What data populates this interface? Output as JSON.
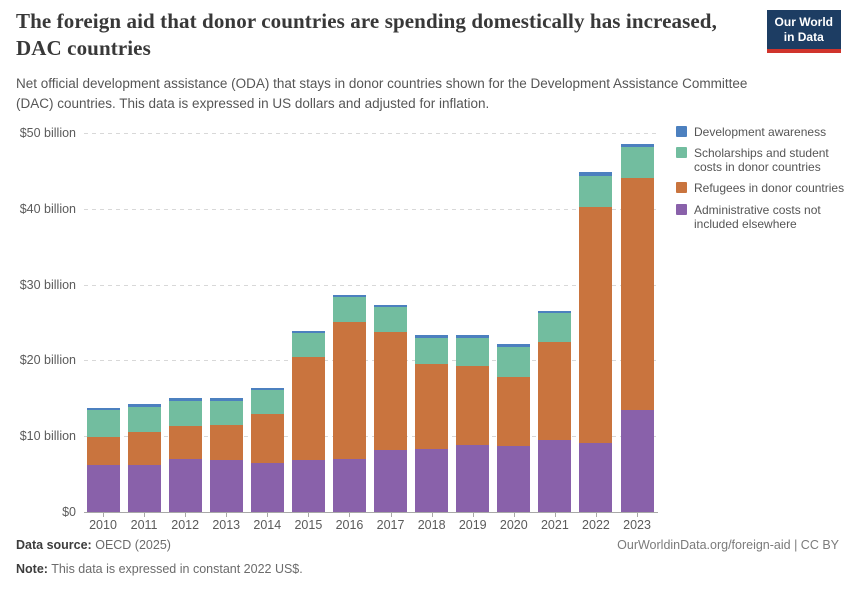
{
  "header": {
    "title": "The foreign aid that donor countries are spending domestically has increased, DAC countries",
    "subtitle": "Net official development assistance (ODA) that stays in donor countries shown for the Development Assistance Committee (DAC) countries. This data is expressed in US dollars and adjusted for inflation.",
    "logo": {
      "line1": "Our World",
      "line2": "in Data",
      "bg_color": "#1d3d63",
      "accent_color": "#d0342c"
    }
  },
  "chart_data": {
    "type": "bar",
    "stacked": true,
    "title": "The foreign aid that donor countries are spending domestically has increased, DAC countries",
    "ylabel": "",
    "xlabel": "",
    "grid": "horizontal-dashed",
    "legend_position": "right",
    "ylim": [
      0,
      50
    ],
    "yticks": [
      {
        "value": 0,
        "label": "$0"
      },
      {
        "value": 10,
        "label": "$10 billion"
      },
      {
        "value": 20,
        "label": "$20 billion"
      },
      {
        "value": 30,
        "label": "$30 billion"
      },
      {
        "value": 40,
        "label": "$40 billion"
      },
      {
        "value": 50,
        "label": "$50 billion"
      }
    ],
    "categories": [
      "2010",
      "2011",
      "2012",
      "2013",
      "2014",
      "2015",
      "2016",
      "2017",
      "2018",
      "2019",
      "2020",
      "2021",
      "2022",
      "2023"
    ],
    "series": [
      {
        "key": "admin",
        "name": "Administrative costs not included elsewhere",
        "color": "#8961AA",
        "values": [
          6.2,
          6.2,
          7.0,
          6.8,
          6.5,
          6.9,
          7.0,
          8.2,
          8.3,
          8.9,
          8.7,
          9.5,
          9.1,
          13.4
        ]
      },
      {
        "key": "refugees",
        "name": "Refugees in donor countries",
        "color": "#C9743E",
        "values": [
          3.7,
          4.3,
          4.4,
          4.7,
          6.4,
          13.5,
          18.1,
          15.5,
          11.2,
          10.4,
          9.1,
          12.9,
          31.1,
          30.7
        ]
      },
      {
        "key": "scholarships",
        "name": "Scholarships and student costs in donor countries",
        "color": "#72BD9F",
        "values": [
          3.5,
          3.4,
          3.3,
          3.2,
          3.2,
          3.2,
          3.2,
          3.3,
          3.5,
          3.7,
          4.0,
          3.8,
          4.1,
          4.0
        ]
      },
      {
        "key": "awareness",
        "name": "Development awareness",
        "color": "#4C80BF",
        "values": [
          0.3,
          0.3,
          0.3,
          0.3,
          0.3,
          0.3,
          0.3,
          0.3,
          0.3,
          0.3,
          0.3,
          0.3,
          0.5,
          0.5
        ]
      }
    ],
    "totals": [
      13.7,
      14.2,
      15.0,
      15.0,
      16.4,
      23.9,
      28.6,
      27.3,
      23.3,
      23.3,
      22.1,
      26.5,
      44.8,
      48.6
    ]
  },
  "legend": {
    "items": [
      {
        "label": "Development awareness",
        "color": "#4C80BF"
      },
      {
        "label": "Scholarships and student costs in donor countries",
        "color": "#72BD9F"
      },
      {
        "label": "Refugees in donor countries",
        "color": "#C9743E"
      },
      {
        "label": "Administrative costs not included elsewhere",
        "color": "#8961AA"
      }
    ]
  },
  "footer": {
    "source_label": "Data source:",
    "source_value": "OECD (2025)",
    "note_label": "Note:",
    "note_value": "This data is expressed in constant 2022 US$.",
    "attribution": "OurWorldinData.org/foreign-aid | CC BY"
  }
}
